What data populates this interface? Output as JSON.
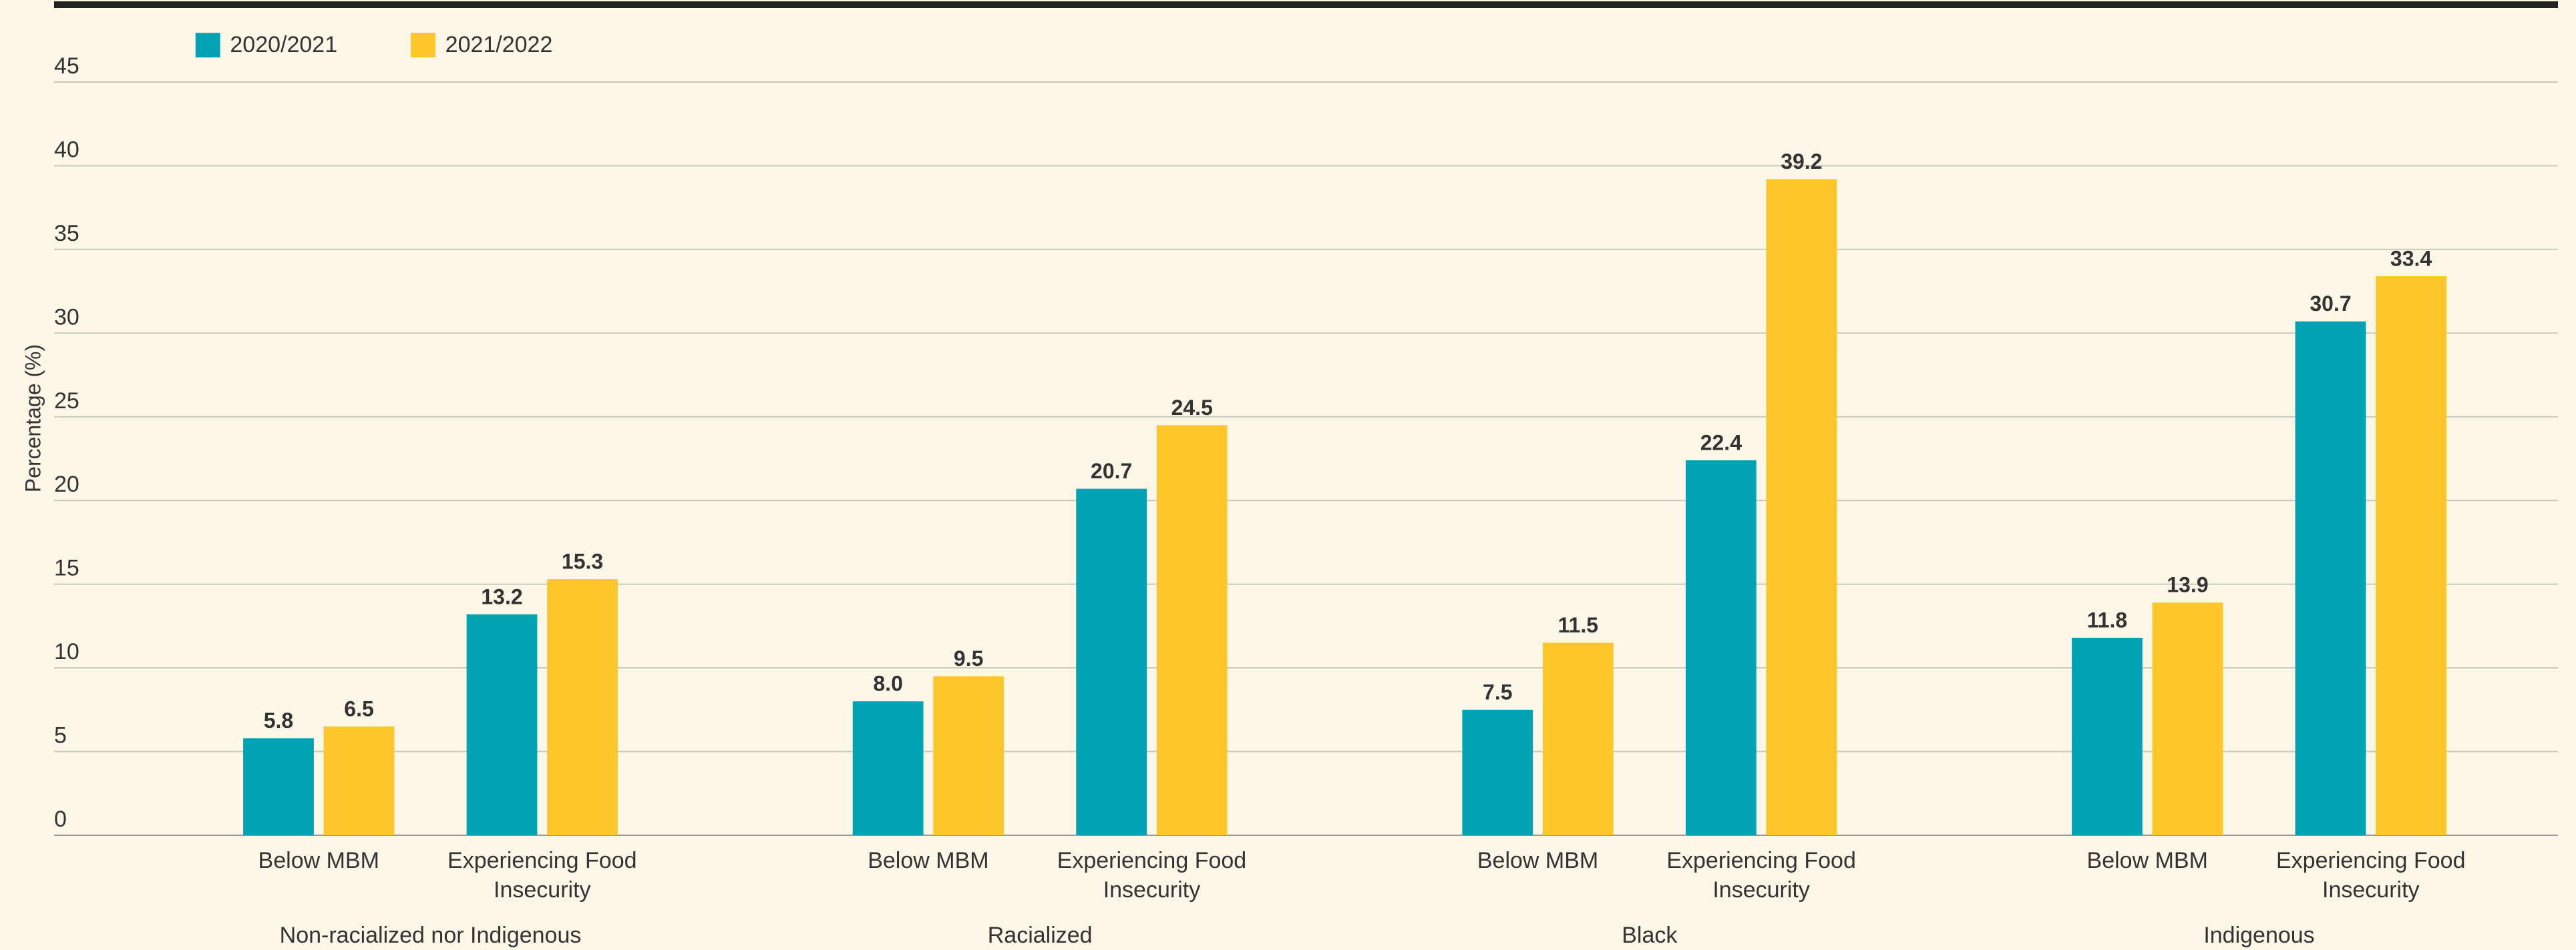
{
  "chart_data": {
    "type": "bar",
    "y_label": "Percentage (%)",
    "groups": [
      "Non-racialized nor Indigenous",
      "Racialized",
      "Black",
      "Indigenous"
    ],
    "categories": [
      "Below MBM",
      "Experiencing Food Insecurity",
      "Below MBM",
      "Experiencing Food Insecurity",
      "Below MBM",
      "Experiencing Food Insecurity",
      "Below MBM",
      "Experiencing Food Insecurity"
    ],
    "series": [
      {
        "name": "2020/2021",
        "color": "#00a3b4",
        "values": [
          5.8,
          13.2,
          8.0,
          20.7,
          7.5,
          22.4,
          11.8,
          30.7
        ],
        "value_labels": [
          "5.8",
          "13.2",
          "8.0",
          "20.7",
          "7.5",
          "22.4",
          "11.8",
          "30.7"
        ]
      },
      {
        "name": "2021/2022",
        "color": "#ffc629",
        "values": [
          6.5,
          15.3,
          9.5,
          24.5,
          11.5,
          39.2,
          13.9,
          33.4
        ],
        "value_labels": [
          "6.5",
          "15.3",
          "9.5",
          "24.5",
          "11.5",
          "39.2",
          "13.9",
          "33.4"
        ]
      }
    ],
    "ylim": [
      0,
      45
    ],
    "yticks": [
      0,
      5,
      10,
      15,
      20,
      25,
      30,
      35,
      40,
      45
    ],
    "grid": true,
    "legend": "top-left"
  }
}
